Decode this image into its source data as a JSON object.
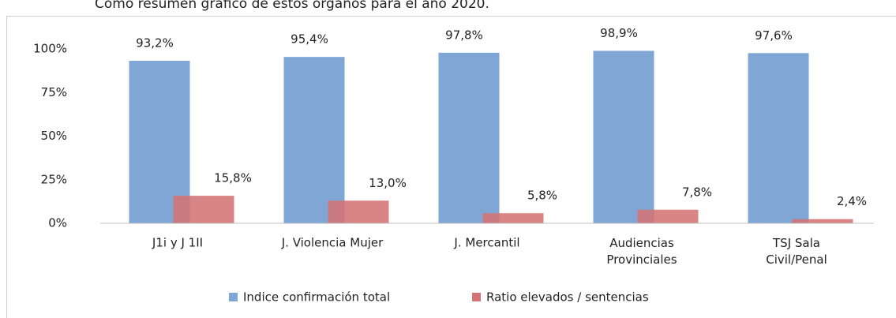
{
  "chart_data": {
    "type": "bar",
    "caption": "Como resumen gráfico de estos órganos para el año 2020.",
    "categories": [
      "J1i y J 1II",
      "J. Violencia  Mujer",
      "J. Mercantil",
      "Audiencias\nProvinciales",
      "TSJ Sala\nCivil/Penal"
    ],
    "series": [
      {
        "name": "Indice confirmación total",
        "color": "#7fa6d4",
        "values": [
          93.2,
          95.4,
          97.8,
          98.9,
          97.6
        ],
        "value_labels": [
          "93,2%",
          "95,4%",
          "97,8%",
          "98,9%",
          "97,6%"
        ]
      },
      {
        "name": "Ratio elevados / sentencias",
        "color": "#d47474",
        "values": [
          15.8,
          13.0,
          5.8,
          7.8,
          2.4
        ],
        "value_labels": [
          "15,8%",
          "13,0%",
          "5,8%",
          "7,8%",
          "2,4%"
        ]
      }
    ],
    "ylim": [
      0,
      100
    ],
    "yticks": [
      {
        "value": 0,
        "label": "0%"
      },
      {
        "value": 25,
        "label": "25%"
      },
      {
        "value": 50,
        "label": "50%"
      },
      {
        "value": 75,
        "label": "75%"
      },
      {
        "value": 100,
        "label": "100%"
      }
    ],
    "grid": false,
    "legend": "bottom"
  }
}
